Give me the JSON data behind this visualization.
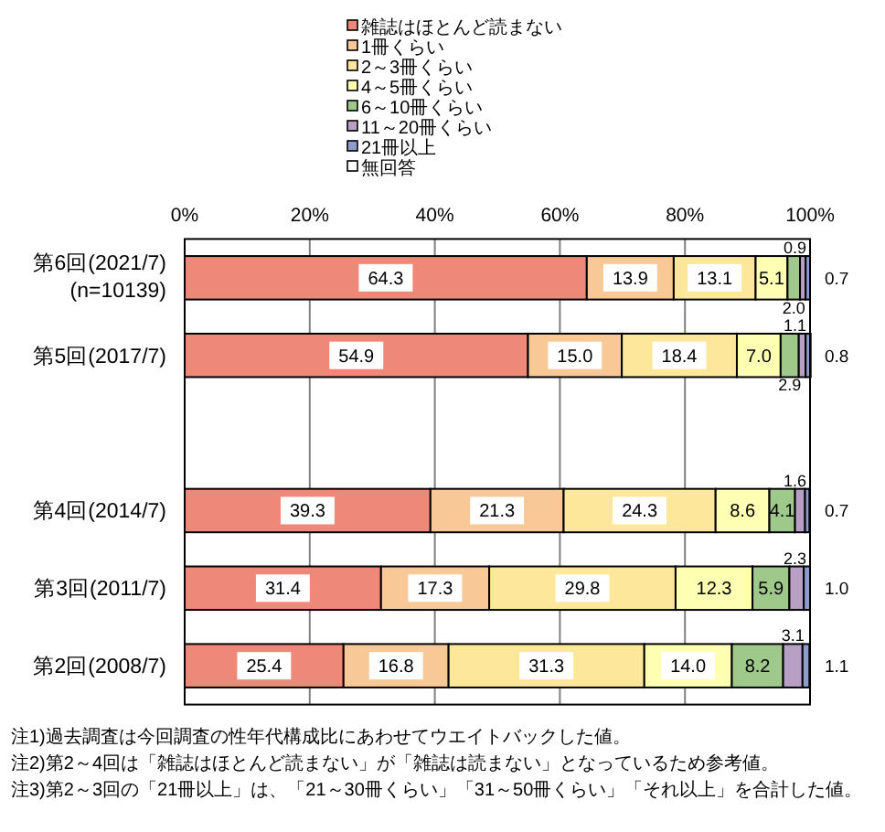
{
  "chart_data": {
    "type": "bar",
    "orientation": "horizontal",
    "stacked": true,
    "categories": [
      "第6回(2021/7)\n(n=10139)",
      "第5回(2017/7)",
      null,
      "第4回(2014/7)",
      "第3回(2011/7)",
      "第2回(2008/7)"
    ],
    "series": [
      {
        "name": "雑誌はほとんど読まない",
        "color": "#ee8878",
        "values": [
          64.3,
          54.9,
          null,
          39.3,
          31.4,
          25.4
        ],
        "value_labels": [
          "64.3",
          "54.9",
          null,
          "39.3",
          "31.4",
          "25.4"
        ]
      },
      {
        "name": "1冊くらい",
        "color": "#f9c897",
        "values": [
          13.9,
          15.0,
          null,
          21.3,
          17.3,
          16.8
        ],
        "value_labels": [
          "13.9",
          "15.0",
          null,
          "21.3",
          "17.3",
          "16.8"
        ]
      },
      {
        "name": "2～3冊くらい",
        "color": "#fde79a",
        "values": [
          13.1,
          18.4,
          null,
          24.3,
          29.8,
          31.3
        ],
        "value_labels": [
          "13.1",
          "18.4",
          null,
          "24.3",
          "29.8",
          "31.3"
        ]
      },
      {
        "name": "4～5冊くらい",
        "color": "#ffffb4",
        "values": [
          5.1,
          7.0,
          null,
          8.6,
          12.3,
          14.0
        ],
        "value_labels": [
          "5.1",
          "7.0",
          null,
          "8.6",
          "12.3",
          "14.0"
        ]
      },
      {
        "name": "6～10冊くらい",
        "color": "#9fc98b",
        "values": [
          2.0,
          2.9,
          null,
          4.1,
          5.9,
          8.2
        ],
        "value_labels": [
          "2.0",
          "2.9",
          null,
          "4.1",
          "5.9",
          "8.2"
        ]
      },
      {
        "name": "11～20冊くらい",
        "color": "#b89fc4",
        "values": [
          0.9,
          1.1,
          null,
          1.6,
          2.3,
          3.1
        ],
        "value_labels": [
          "0.9",
          "1.1",
          null,
          "1.6",
          "2.3",
          "3.1"
        ]
      },
      {
        "name": "21冊以上",
        "color": "#8d9ccb",
        "values": [
          0.7,
          0.8,
          null,
          0.7,
          1.0,
          1.1
        ],
        "value_labels": [
          "0.7",
          "0.8",
          null,
          "0.7",
          "1.0",
          "1.1"
        ]
      },
      {
        "name": "無回答",
        "color": "#ffffff",
        "values": [
          null,
          null,
          null,
          null,
          null,
          null
        ]
      }
    ],
    "xlim": [
      0,
      100
    ],
    "xticks": [
      {
        "value": 0,
        "label": "0%"
      },
      {
        "value": 20,
        "label": "20%"
      },
      {
        "value": 40,
        "label": "40%"
      },
      {
        "value": 60,
        "label": "60%"
      },
      {
        "value": 80,
        "label": "80%"
      },
      {
        "value": 100,
        "label": "100%"
      }
    ],
    "grid": "x",
    "legend": "top",
    "annotations": [
      "注1)過去調査は今回調査の性年代構成比にあわせてウエイトバックした値。",
      "注2)第2～4回は「雑誌はほとんど読まない」が「雑誌は読まない」となっているため参考値。",
      "注3)第2～3回の「21冊以上」は、「21～30冊くらい」「31～50冊くらい」「それ以上」を合計した値。"
    ]
  }
}
